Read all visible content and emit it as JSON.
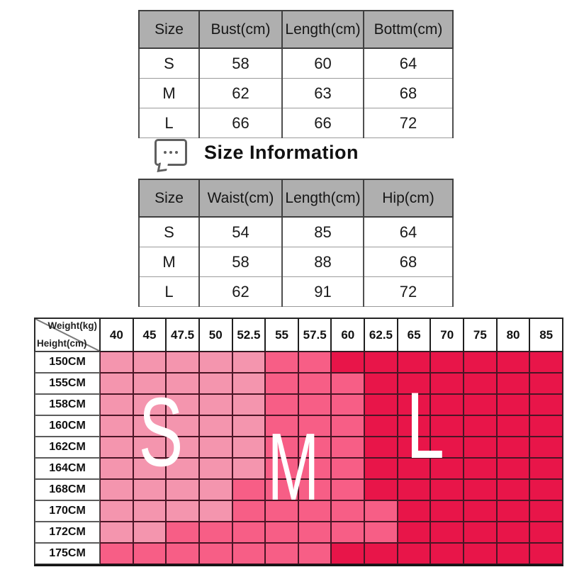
{
  "top_table": {
    "columns": [
      "Size",
      "Bust(cm)",
      "Length(cm)",
      "Bottm(cm)"
    ],
    "rows": [
      [
        "S",
        "58",
        "60",
        "64"
      ],
      [
        "M",
        "62",
        "63",
        "68"
      ],
      [
        "L",
        "66",
        "66",
        "72"
      ]
    ]
  },
  "size_information": {
    "title": "Size Information",
    "icon": "speech-bubble-icon"
  },
  "bottoms_table": {
    "columns": [
      "Size",
      "Waist(cm)",
      "Length(cm)",
      "Hip(cm)"
    ],
    "rows": [
      [
        "S",
        "54",
        "85",
        "64"
      ],
      [
        "M",
        "58",
        "88",
        "68"
      ],
      [
        "L",
        "62",
        "91",
        "72"
      ]
    ]
  },
  "chart_data": {
    "type": "heatmap",
    "x_label": "Weight(kg)",
    "y_label": "Height(cm)",
    "x_ticks": [
      "40",
      "45",
      "47.5",
      "50",
      "52.5",
      "55",
      "57.5",
      "60",
      "62.5",
      "65",
      "70",
      "75",
      "80",
      "85"
    ],
    "y_ticks": [
      "150CM",
      "155CM",
      "158CM",
      "160CM",
      "162CM",
      "164CM",
      "168CM",
      "170CM",
      "172CM",
      "175CM"
    ],
    "cell_values": [
      [
        "S",
        "S",
        "S",
        "S",
        "S",
        "M",
        "M",
        "L",
        "L",
        "L",
        "L",
        "L",
        "L",
        "L"
      ],
      [
        "S",
        "S",
        "S",
        "S",
        "S",
        "M",
        "M",
        "M",
        "L",
        "L",
        "L",
        "L",
        "L",
        "L"
      ],
      [
        "S",
        "S",
        "S",
        "S",
        "S",
        "M",
        "M",
        "M",
        "L",
        "L",
        "L",
        "L",
        "L",
        "L"
      ],
      [
        "S",
        "S",
        "S",
        "S",
        "S",
        "M",
        "M",
        "M",
        "L",
        "L",
        "L",
        "L",
        "L",
        "L"
      ],
      [
        "S",
        "S",
        "S",
        "S",
        "S",
        "M",
        "M",
        "M",
        "L",
        "L",
        "L",
        "L",
        "L",
        "L"
      ],
      [
        "S",
        "S",
        "S",
        "S",
        "S",
        "M",
        "M",
        "M",
        "L",
        "L",
        "L",
        "L",
        "L",
        "L"
      ],
      [
        "S",
        "S",
        "S",
        "S",
        "M",
        "M",
        "M",
        "M",
        "L",
        "L",
        "L",
        "L",
        "L",
        "L"
      ],
      [
        "S",
        "S",
        "S",
        "S",
        "M",
        "M",
        "M",
        "M",
        "M",
        "L",
        "L",
        "L",
        "L",
        "L"
      ],
      [
        "S",
        "S",
        "M",
        "M",
        "M",
        "M",
        "M",
        "M",
        "M",
        "L",
        "L",
        "L",
        "L",
        "L"
      ],
      [
        "M",
        "M",
        "M",
        "M",
        "M",
        "M",
        "M",
        "L",
        "L",
        "L",
        "L",
        "L",
        "L",
        "L"
      ]
    ],
    "zone_colors": {
      "S": "#F495AE",
      "M": "#F75E86",
      "L": "#E81549"
    },
    "overlay_letters": [
      "S",
      "M",
      "L"
    ]
  }
}
